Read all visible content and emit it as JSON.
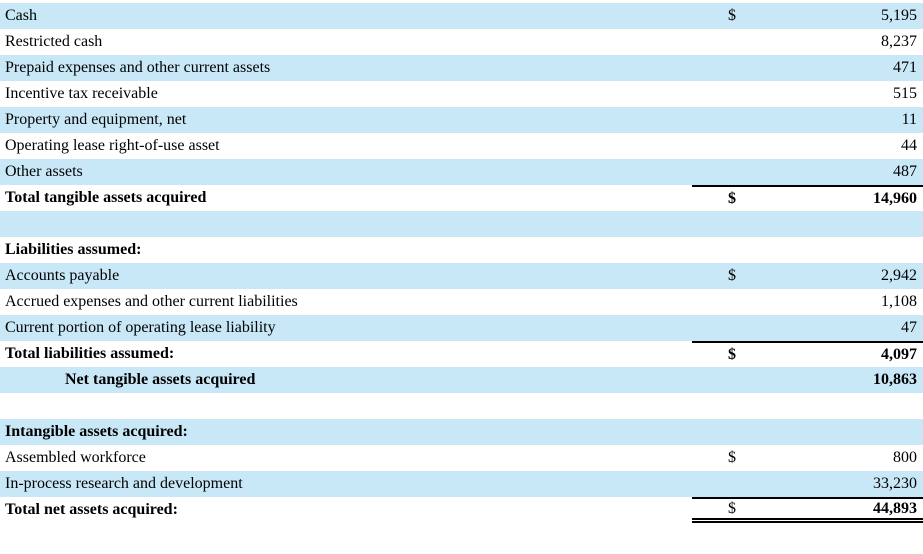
{
  "table": {
    "description": "Purchase price allocation schedule",
    "colors": {
      "row_highlight": "#c9e8f7",
      "row_plain": "#ffffff",
      "border": "#000000",
      "text": "#000000"
    },
    "rows": [
      {
        "label": "Cash",
        "currency": "$",
        "amount": "5,195",
        "shade": true,
        "bold": false
      },
      {
        "label": "Restricted cash",
        "currency": "",
        "amount": "8,237",
        "shade": false,
        "bold": false
      },
      {
        "label": "Prepaid expenses and other current assets",
        "currency": "",
        "amount": "471",
        "shade": true,
        "bold": false
      },
      {
        "label": "Incentive tax receivable",
        "currency": "",
        "amount": "515",
        "shade": false,
        "bold": false
      },
      {
        "label": "Property and equipment, net",
        "currency": "",
        "amount": "11",
        "shade": true,
        "bold": false
      },
      {
        "label": "Operating lease right-of-use asset",
        "currency": "",
        "amount": "44",
        "shade": false,
        "bold": false
      },
      {
        "label": "Other assets",
        "currency": "",
        "amount": "487",
        "shade": true,
        "bold": false
      },
      {
        "label": "Total tangible assets acquired",
        "currency": "$",
        "amount": "14,960",
        "shade": false,
        "bold": true,
        "bold_currency": true,
        "border_top": true
      },
      {
        "label": "",
        "currency": "",
        "amount": "",
        "shade": true,
        "bold": false
      },
      {
        "label": "Liabilities assumed:",
        "currency": "",
        "amount": "",
        "shade": false,
        "bold": true
      },
      {
        "label": "Accounts payable",
        "currency": "$",
        "amount": "2,942",
        "shade": true,
        "bold": false
      },
      {
        "label": "Accrued expenses and other current liabilities",
        "currency": "",
        "amount": "1,108",
        "shade": false,
        "bold": false
      },
      {
        "label": "Current portion of operating lease liability",
        "currency": "",
        "amount": "47",
        "shade": true,
        "bold": false
      },
      {
        "label": "Total liabilities assumed:",
        "currency": "$",
        "amount": "4,097",
        "shade": false,
        "bold": true,
        "bold_currency": true,
        "border_top": true
      },
      {
        "label": "Net tangible assets acquired",
        "currency": "",
        "amount": "10,863",
        "shade": true,
        "bold": true,
        "indent": true
      },
      {
        "label": "",
        "currency": "",
        "amount": "",
        "shade": false,
        "bold": false
      },
      {
        "label": "Intangible assets acquired:",
        "currency": "",
        "amount": "",
        "shade": true,
        "bold": true
      },
      {
        "label": "Assembled workforce",
        "currency": "$",
        "amount": "800",
        "shade": false,
        "bold": false
      },
      {
        "label": "In-process research and development",
        "currency": "",
        "amount": "33,230",
        "shade": true,
        "bold": false
      },
      {
        "label": "Total net assets acquired:",
        "currency": "$",
        "amount": "44,893",
        "shade": false,
        "bold": true,
        "bold_currency": false,
        "border_top": true,
        "border_bottom_double": true
      }
    ]
  }
}
